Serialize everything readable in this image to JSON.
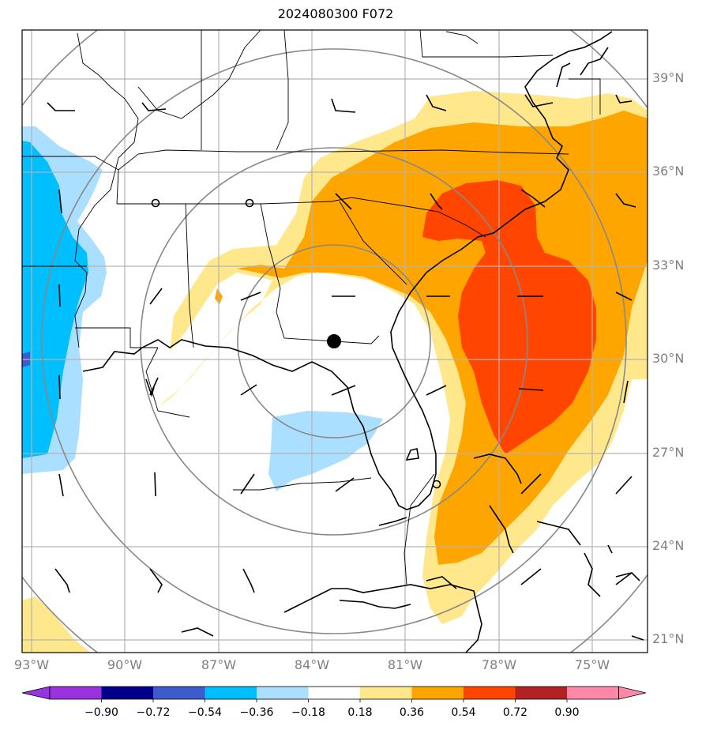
{
  "title": "2024080300 F072",
  "lat_labels": [
    "39°N",
    "36°N",
    "33°N",
    "30°N",
    "27°N",
    "24°N",
    "21°N"
  ],
  "lon_labels": [
    "93°W",
    "90°W",
    "87°W",
    "84°W",
    "81°W",
    "78°W",
    "75°W"
  ],
  "colorbar": {
    "ticks": [
      "−0.90",
      "−0.72",
      "−0.54",
      "−0.36",
      "−0.18",
      "0.18",
      "0.36",
      "0.54",
      "0.72",
      "0.90"
    ],
    "colors": [
      "#9933dd",
      "#00008b",
      "#3c5ccc",
      "#00bfff",
      "#aadfff",
      "#ffffff",
      "#ffe88c",
      "#ffa500",
      "#ff4500",
      "#b22222",
      "#ff88aa"
    ]
  },
  "map": {
    "extent_lon": [
      -93,
      -73
    ],
    "extent_lat": [
      20.5,
      40.5
    ],
    "center": {
      "lon": -83.2,
      "lat": 30.6
    },
    "fill_colors": {
      "light_yellow": "#ffe88c",
      "orange": "#ffa500",
      "red_orange": "#ff4500",
      "light_blue": "#aadfff",
      "blue": "#00bfff",
      "dark_blue": "#3c5ccc"
    }
  }
}
